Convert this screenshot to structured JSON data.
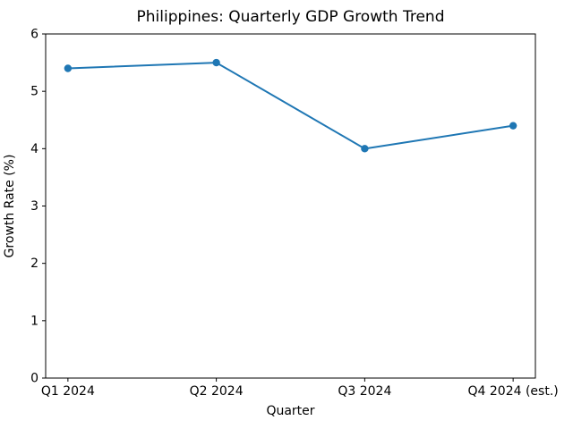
{
  "chart_data": {
    "type": "line",
    "title": "Philippines: Quarterly GDP Growth Trend",
    "xlabel": "Quarter",
    "ylabel": "Growth Rate (%)",
    "categories": [
      "Q1 2024",
      "Q2 2024",
      "Q3 2024",
      "Q4 2024 (est.)"
    ],
    "values": [
      5.4,
      5.5,
      4.0,
      4.4
    ],
    "ylim": [
      0,
      6
    ],
    "yticks": [
      0,
      1,
      2,
      3,
      4,
      5,
      6
    ],
    "line_color": "#1f77b4",
    "marker": "circle",
    "grid": false,
    "legend": "none",
    "spine_color": "#000000",
    "background": "#ffffff"
  }
}
